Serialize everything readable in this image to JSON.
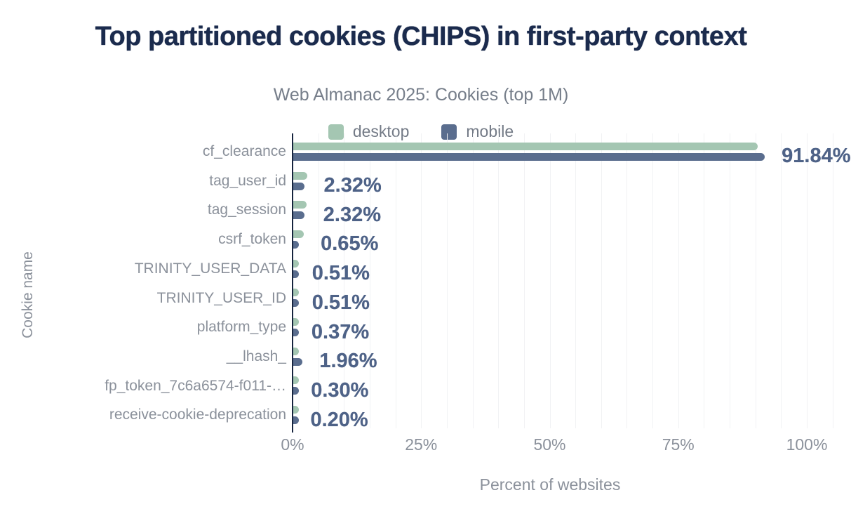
{
  "chart_data": {
    "type": "bar",
    "orientation": "horizontal",
    "title": "Top partitioned cookies (CHIPS) in first-party context",
    "subtitle": "Web Almanac 2025: Cookies (top 1M)",
    "xlabel": "Percent of websites",
    "ylabel": "Cookie name",
    "xlim": [
      0,
      100
    ],
    "x_ticks": [
      "0%",
      "25%",
      "50%",
      "75%",
      "100%"
    ],
    "grid_interval_pct": 5,
    "grid": true,
    "legend_position": "top",
    "categories": [
      "cf_clearance",
      "tag_user_id",
      "tag_session",
      "csrf_token",
      "TRINITY_USER_DATA",
      "TRINITY_USER_ID",
      "platform_type",
      "__lhash_",
      "fp_token_7c6a6574-f011-…",
      "receive-cookie-deprecation"
    ],
    "series": [
      {
        "name": "desktop",
        "color": "#a4c6b2",
        "values": [
          90.4,
          2.8,
          2.7,
          2.2,
          0.5,
          0.5,
          0.4,
          0.2,
          0.3,
          0.2
        ]
      },
      {
        "name": "mobile",
        "color": "#5a6d8e",
        "values": [
          91.84,
          2.32,
          2.32,
          0.65,
          0.51,
          0.51,
          0.37,
          1.96,
          0.3,
          0.2
        ]
      }
    ],
    "data_labels": [
      "91.84%",
      "2.32%",
      "2.32%",
      "0.65%",
      "0.51%",
      "0.51%",
      "0.37%",
      "1.96%",
      "0.30%",
      "0.20%"
    ],
    "data_labels_series": "mobile"
  },
  "colors": {
    "title": "#1b2b4d",
    "subtitle": "#767e8a",
    "axis_labels": "#8b919b",
    "value_labels": "#4e6287",
    "desktop_bar": "#a4c6b2",
    "mobile_bar": "#5a6d8e",
    "gridline": "#f1f2f4",
    "axis_line": "#16243e",
    "background": "#ffffff"
  }
}
